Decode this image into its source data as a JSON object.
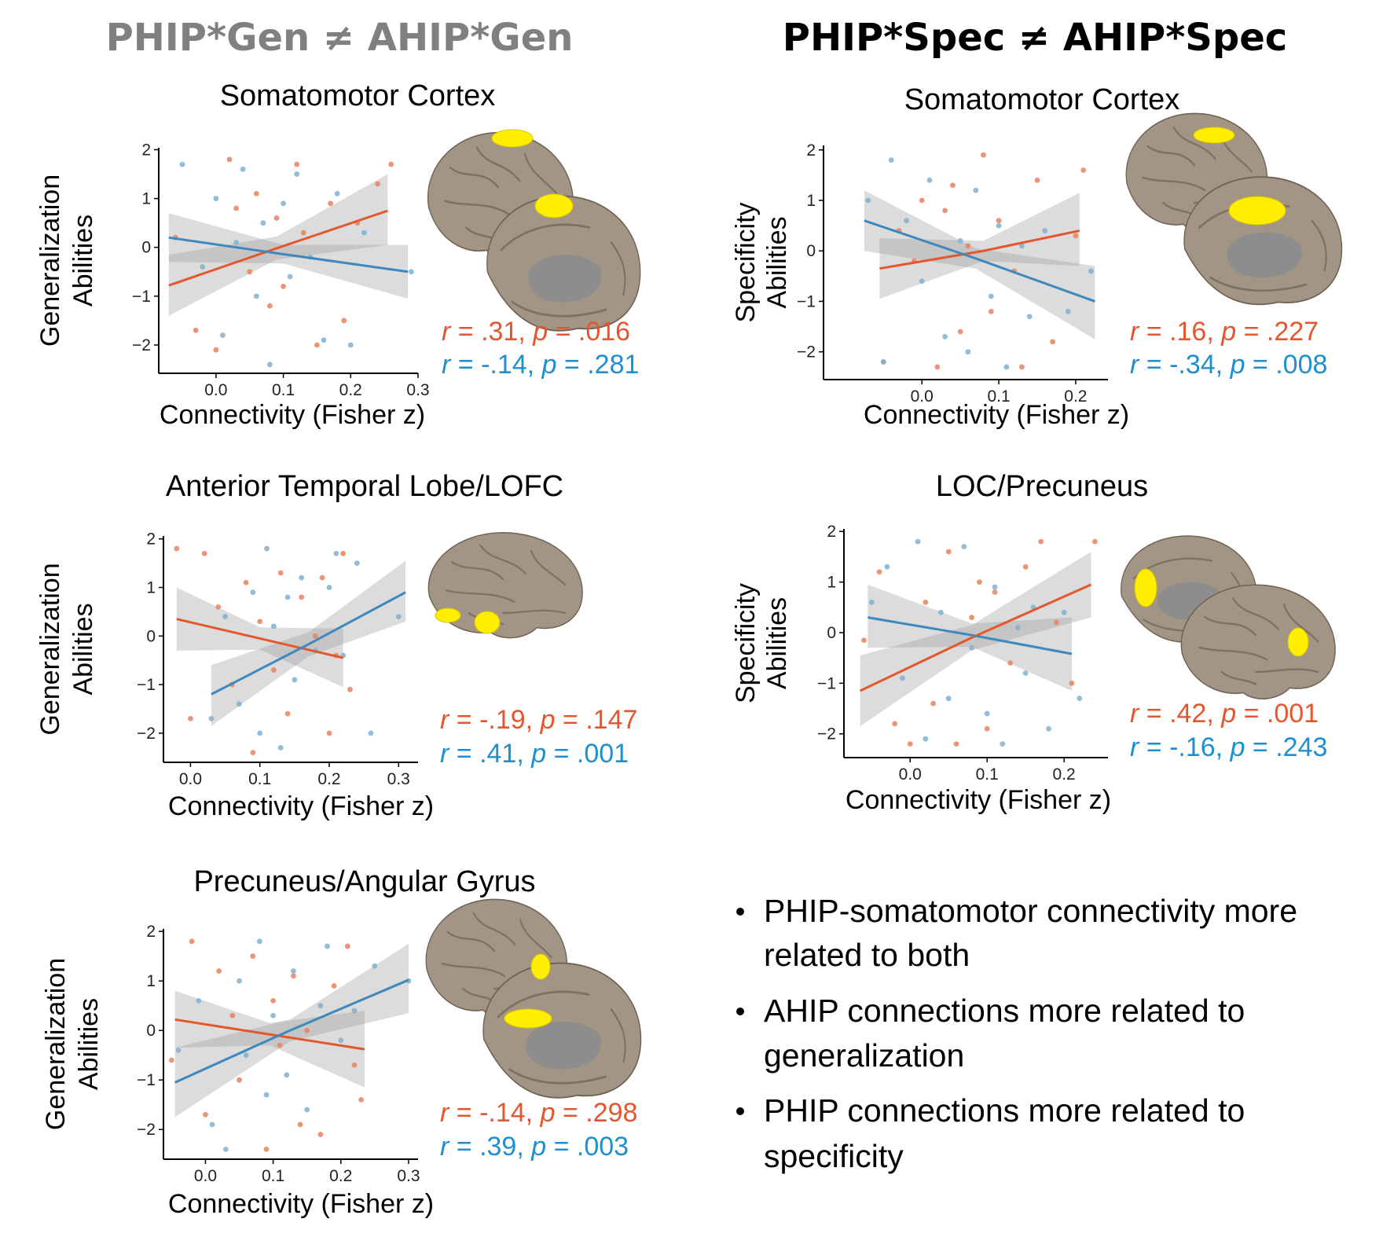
{
  "headings": {
    "left": "PHIP*Gen ≠ AHIP*Gen",
    "right": "PHIP*Spec ≠ AHIP*Spec"
  },
  "chart_data": [
    {
      "type": "scatter",
      "title": "Somatomotor Cortex",
      "xlabel": "Connectivity (Fisher z)",
      "ylabel": [
        "Generalization",
        "Abilities"
      ],
      "xlim": [
        -0.085,
        0.3
      ],
      "ylim": [
        -2.58,
        2.04
      ],
      "xticks": [
        {
          "value": 0,
          "label": "0.0"
        },
        {
          "value": 0.1,
          "label": "0.1"
        },
        {
          "value": 0.2,
          "label": "0.2"
        },
        {
          "value": 0.3,
          "label": "0.3"
        }
      ],
      "yticks": [
        2,
        1,
        0,
        {
          "value": -1,
          "label": "−1"
        },
        {
          "value": -2,
          "label": "−2"
        }
      ],
      "series": [
        {
          "color": "#e8835f",
          "x": [
            -0.06,
            -0.03,
            0.0,
            0.02,
            0.03,
            0.05,
            0.06,
            0.08,
            0.09,
            0.1,
            0.12,
            0.13,
            0.15,
            0.17,
            0.19,
            0.21,
            0.24,
            0.26
          ],
          "values": [
            0.2,
            -1.7,
            -2.1,
            1.8,
            0.8,
            -0.5,
            1.1,
            -1.2,
            0.6,
            -0.8,
            1.7,
            0.3,
            -2.0,
            0.9,
            -1.5,
            0.5,
            1.3,
            1.7
          ]
        },
        {
          "color": "#7fb0d0",
          "x": [
            -0.05,
            -0.02,
            0.0,
            0.01,
            0.03,
            0.04,
            0.06,
            0.07,
            0.08,
            0.1,
            0.11,
            0.12,
            0.14,
            0.16,
            0.18,
            0.2,
            0.22,
            0.29
          ],
          "values": [
            1.7,
            -0.4,
            1.0,
            -1.8,
            0.1,
            1.6,
            -1.0,
            0.5,
            -2.4,
            0.9,
            -0.6,
            1.5,
            -0.2,
            -1.9,
            1.1,
            -2.0,
            0.3,
            -0.5
          ]
        }
      ],
      "fits": [
        {
          "color": "#e4572e",
          "x": [
            -0.07,
            0.09,
            0.255
          ],
          "values": [
            -0.78,
            -0.02,
            0.75
          ],
          "ci_lower": [
            -1.4,
            -0.25,
            0.05
          ],
          "ci_upper": [
            -0.15,
            0.22,
            1.5
          ]
        },
        {
          "color": "#3d88bc",
          "x": [
            -0.07,
            0.1,
            0.285
          ],
          "values": [
            0.2,
            -0.14,
            -0.5
          ],
          "ci_lower": [
            -0.3,
            -0.33,
            -1.05
          ],
          "ci_upper": [
            0.7,
            0.05,
            0.05
          ]
        }
      ],
      "annotations": [
        {
          "color": "#e4572e",
          "parts": [
            "r",
            " = .31, ",
            "p",
            " = .016"
          ]
        },
        {
          "color": "#1f8fd0",
          "parts": [
            "r",
            " = -.14, ",
            "p",
            " = .281"
          ]
        }
      ]
    },
    {
      "type": "scatter",
      "title": "Somatomotor Cortex",
      "xlabel": "Connectivity (Fisher z)",
      "ylabel": [
        "Specificity",
        "Abilities"
      ],
      "xlim": [
        -0.128,
        0.242
      ],
      "ylim": [
        -2.55,
        2.09
      ],
      "xticks": [
        {
          "value": 0,
          "label": "0.0"
        },
        {
          "value": 0.1,
          "label": "0.1"
        },
        {
          "value": 0.2,
          "label": "0.2"
        }
      ],
      "yticks": [
        2,
        1,
        0,
        {
          "value": -1,
          "label": "−1"
        },
        {
          "value": -2,
          "label": "−2"
        }
      ],
      "series": [
        {
          "color": "#e8835f",
          "x": [
            -0.05,
            -0.03,
            -0.01,
            0.0,
            0.02,
            0.03,
            0.04,
            0.05,
            0.06,
            0.08,
            0.09,
            0.1,
            0.12,
            0.13,
            0.15,
            0.17,
            0.2,
            0.21
          ],
          "values": [
            -2.2,
            0.4,
            -0.2,
            1.0,
            -2.3,
            0.8,
            1.3,
            -1.6,
            0.1,
            1.9,
            -1.2,
            0.6,
            -0.4,
            -2.3,
            1.4,
            -1.8,
            0.3,
            1.6
          ]
        },
        {
          "color": "#7fb0d0",
          "x": [
            -0.07,
            -0.05,
            -0.04,
            -0.02,
            0.0,
            0.01,
            0.03,
            0.05,
            0.06,
            0.07,
            0.09,
            0.1,
            0.11,
            0.13,
            0.14,
            0.16,
            0.19,
            0.22
          ],
          "values": [
            1.0,
            -2.2,
            1.8,
            0.6,
            -0.6,
            1.4,
            -1.7,
            0.2,
            -2.0,
            1.2,
            -0.9,
            0.5,
            -2.3,
            0.1,
            -1.3,
            0.4,
            -1.2,
            -0.4
          ]
        }
      ],
      "fits": [
        {
          "color": "#e4572e",
          "x": [
            -0.055,
            0.08,
            0.205
          ],
          "values": [
            -0.35,
            0.0,
            0.4
          ],
          "ci_lower": [
            -0.95,
            -0.2,
            -0.3
          ],
          "ci_upper": [
            0.25,
            0.2,
            1.15
          ]
        },
        {
          "color": "#3d88bc",
          "x": [
            -0.075,
            0.07,
            0.225
          ],
          "values": [
            0.6,
            -0.15,
            -1.0
          ],
          "ci_lower": [
            0.0,
            -0.35,
            -1.75
          ],
          "ci_upper": [
            1.2,
            0.05,
            -0.3
          ]
        }
      ],
      "annotations": [
        {
          "color": "#e4572e",
          "parts": [
            "r",
            " = .16, ",
            "p",
            " = .227"
          ]
        },
        {
          "color": "#1f8fd0",
          "parts": [
            "r",
            " = -.34, ",
            "p",
            " = .008"
          ]
        }
      ]
    },
    {
      "type": "scatter",
      "title": "Anterior Temporal Lobe/LOFC",
      "xlabel": "Connectivity (Fisher z)",
      "ylabel": [
        "Generalization",
        "Abilities"
      ],
      "xlim": [
        -0.039,
        0.328
      ],
      "ylim": [
        -2.6,
        2.06
      ],
      "xticks": [
        {
          "value": 0,
          "label": "0.0"
        },
        {
          "value": 0.1,
          "label": "0.1"
        },
        {
          "value": 0.2,
          "label": "0.2"
        },
        {
          "value": 0.3,
          "label": "0.3"
        }
      ],
      "yticks": [
        2,
        1,
        0,
        {
          "value": -1,
          "label": "−1"
        },
        {
          "value": -2,
          "label": "−2"
        }
      ],
      "series": [
        {
          "color": "#e8835f",
          "x": [
            -0.02,
            0.0,
            0.02,
            0.04,
            0.06,
            0.08,
            0.09,
            0.1,
            0.12,
            0.13,
            0.14,
            0.16,
            0.18,
            0.19,
            0.2,
            0.21,
            0.22,
            0.23
          ],
          "values": [
            1.8,
            -1.7,
            1.7,
            0.6,
            -1.0,
            1.1,
            -2.4,
            0.3,
            -0.7,
            1.3,
            -1.6,
            0.8,
            0.0,
            1.2,
            -2.0,
            -0.4,
            1.7,
            -1.1
          ]
        },
        {
          "color": "#7fb0d0",
          "x": [
            0.03,
            0.05,
            0.07,
            0.09,
            0.1,
            0.11,
            0.12,
            0.13,
            0.14,
            0.15,
            0.16,
            0.18,
            0.2,
            0.21,
            0.22,
            0.24,
            0.26,
            0.3
          ],
          "values": [
            -1.7,
            0.4,
            -1.4,
            0.9,
            -2.0,
            1.8,
            0.2,
            -2.3,
            0.8,
            -0.9,
            1.2,
            -0.3,
            1.0,
            1.7,
            -0.4,
            1.5,
            -2.0,
            0.4
          ]
        }
      ],
      "fits": [
        {
          "color": "#e4572e",
          "x": [
            -0.02,
            0.1,
            0.22
          ],
          "values": [
            0.35,
            -0.05,
            -0.45
          ],
          "ci_lower": [
            -0.3,
            -0.28,
            -1.05
          ],
          "ci_upper": [
            1.0,
            0.18,
            0.15
          ]
        },
        {
          "color": "#3d88bc",
          "x": [
            0.03,
            0.17,
            0.31
          ],
          "values": [
            -1.2,
            -0.17,
            0.9
          ],
          "ci_lower": [
            -1.85,
            -0.42,
            0.3
          ],
          "ci_upper": [
            -0.6,
            0.08,
            1.55
          ]
        }
      ],
      "annotations": [
        {
          "color": "#e4572e",
          "parts": [
            "r",
            " = -.19, ",
            "p",
            " = .147"
          ]
        },
        {
          "color": "#1f8fd0",
          "parts": [
            "r",
            " = .41, ",
            "p",
            " = .001"
          ]
        }
      ]
    },
    {
      "type": "scatter",
      "title": "LOC/Precuneus",
      "xlabel": "Connectivity (Fisher z)",
      "ylabel": [
        "Specificity",
        "Abilities"
      ],
      "xlim": [
        -0.086,
        0.257
      ],
      "ylim": [
        -2.47,
        2.05
      ],
      "xticks": [
        {
          "value": 0,
          "label": "0.0"
        },
        {
          "value": 0.1,
          "label": "0.1"
        },
        {
          "value": 0.2,
          "label": "0.2"
        }
      ],
      "yticks": [
        2,
        1,
        0,
        {
          "value": -1,
          "label": "−1"
        },
        {
          "value": -2,
          "label": "−2"
        }
      ],
      "series": [
        {
          "color": "#e8835f",
          "x": [
            -0.06,
            -0.04,
            -0.02,
            0.0,
            0.02,
            0.03,
            0.05,
            0.06,
            0.08,
            0.09,
            0.1,
            0.11,
            0.13,
            0.15,
            0.17,
            0.19,
            0.21,
            0.24
          ],
          "values": [
            -0.15,
            1.2,
            -1.8,
            -2.2,
            0.6,
            -1.4,
            1.6,
            -2.2,
            0.3,
            1.0,
            -1.9,
            0.8,
            -0.6,
            1.3,
            1.8,
            0.2,
            -1.0,
            1.8
          ]
        },
        {
          "color": "#7fb0d0",
          "x": [
            -0.05,
            -0.03,
            -0.01,
            0.01,
            0.02,
            0.04,
            0.05,
            0.07,
            0.08,
            0.1,
            0.11,
            0.12,
            0.14,
            0.15,
            0.16,
            0.18,
            0.2,
            0.22
          ],
          "values": [
            0.6,
            1.3,
            -0.9,
            1.8,
            -2.1,
            0.4,
            -1.3,
            1.7,
            -0.3,
            -1.6,
            0.9,
            -2.2,
            0.1,
            -0.8,
            0.5,
            -1.9,
            0.4,
            -1.3
          ]
        }
      ],
      "fits": [
        {
          "color": "#e4572e",
          "x": [
            -0.065,
            0.08,
            0.235
          ],
          "values": [
            -1.15,
            -0.1,
            0.95
          ],
          "ci_lower": [
            -1.85,
            -0.35,
            0.3
          ],
          "ci_upper": [
            -0.45,
            0.15,
            1.6
          ]
        },
        {
          "color": "#3d88bc",
          "x": [
            -0.055,
            0.08,
            0.21
          ],
          "values": [
            0.3,
            -0.05,
            -0.42
          ],
          "ci_lower": [
            -0.3,
            -0.28,
            -1.15
          ],
          "ci_upper": [
            0.95,
            0.18,
            0.3
          ]
        }
      ],
      "annotations": [
        {
          "color": "#e4572e",
          "parts": [
            "r",
            " = .42, ",
            "p",
            " = .001"
          ]
        },
        {
          "color": "#1f8fd0",
          "parts": [
            "r",
            " = -.16, ",
            "p",
            " = .243"
          ]
        }
      ]
    },
    {
      "type": "scatter",
      "title": "Precuneus/Angular Gyrus",
      "xlabel": "Connectivity (Fisher z)",
      "ylabel": [
        "Generalization",
        "Abilities"
      ],
      "xlim": [
        -0.062,
        0.314
      ],
      "ylim": [
        -2.6,
        2.05
      ],
      "xticks": [
        {
          "value": 0,
          "label": "0.0"
        },
        {
          "value": 0.1,
          "label": "0.1"
        },
        {
          "value": 0.2,
          "label": "0.2"
        },
        {
          "value": 0.3,
          "label": "0.3"
        }
      ],
      "yticks": [
        2,
        1,
        0,
        {
          "value": -1,
          "label": "−1"
        },
        {
          "value": -2,
          "label": "−2"
        }
      ],
      "series": [
        {
          "color": "#e8835f",
          "x": [
            -0.05,
            -0.02,
            0.0,
            0.02,
            0.04,
            0.05,
            0.07,
            0.09,
            0.1,
            0.11,
            0.13,
            0.14,
            0.15,
            0.17,
            0.19,
            0.21,
            0.22,
            0.23
          ],
          "values": [
            -0.6,
            1.8,
            -1.7,
            1.2,
            0.3,
            -1.0,
            1.5,
            -2.4,
            0.6,
            -0.3,
            1.1,
            -1.9,
            0.0,
            -2.1,
            0.9,
            1.7,
            -0.7,
            -1.4
          ]
        },
        {
          "color": "#7fb0d0",
          "x": [
            -0.04,
            -0.01,
            0.01,
            0.03,
            0.05,
            0.06,
            0.08,
            0.09,
            0.1,
            0.12,
            0.13,
            0.15,
            0.17,
            0.18,
            0.2,
            0.22,
            0.25,
            0.3
          ],
          "values": [
            -0.4,
            0.6,
            -1.9,
            -2.4,
            1.0,
            -0.5,
            1.8,
            -1.3,
            0.3,
            -0.9,
            1.2,
            -1.6,
            0.5,
            1.7,
            -0.2,
            0.4,
            1.3,
            1.0
          ]
        }
      ],
      "fits": [
        {
          "color": "#e4572e",
          "x": [
            -0.045,
            0.095,
            0.235
          ],
          "values": [
            0.22,
            -0.08,
            -0.38
          ],
          "ci_lower": [
            -0.35,
            -0.3,
            -1.15
          ],
          "ci_upper": [
            0.8,
            0.15,
            0.4
          ]
        },
        {
          "color": "#3d88bc",
          "x": [
            -0.045,
            0.125,
            0.3
          ],
          "values": [
            -1.05,
            0.0,
            1.02
          ],
          "ci_lower": [
            -1.75,
            -0.22,
            0.35
          ],
          "ci_upper": [
            -0.35,
            0.22,
            1.75
          ]
        }
      ],
      "annotations": [
        {
          "color": "#e4572e",
          "parts": [
            "r",
            " = -.14, ",
            "p",
            " = .298"
          ]
        },
        {
          "color": "#1f8fd0",
          "parts": [
            "r",
            " = .39, ",
            "p",
            " = .003"
          ]
        }
      ]
    }
  ],
  "bullets": [
    [
      "PHIP-somatomotor connectivity more",
      "related to both"
    ],
    [
      "AHIP connections more related to",
      "generalization"
    ],
    [
      "PHIP connections more related to",
      "specificity"
    ]
  ]
}
